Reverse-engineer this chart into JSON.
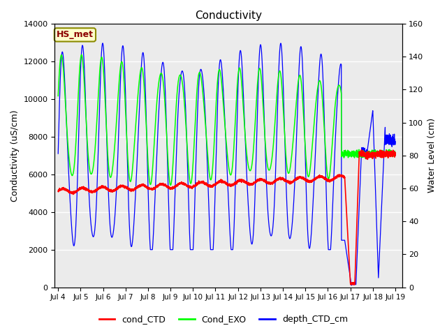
{
  "title": "Conductivity",
  "ylabel_left": "Conductivity (uS/cm)",
  "ylabel_right": "Water Level (cm)",
  "xlim_days": [
    3.85,
    19.3
  ],
  "ylim_left": [
    0,
    14000
  ],
  "ylim_right": [
    0,
    160
  ],
  "xtick_labels": [
    "Jul 4",
    "Jul 5",
    "Jul 6",
    "Jul 7",
    "Jul 8",
    "Jul 9",
    "Jul 10",
    "Jul 11",
    "Jul 12",
    "Jul 13",
    "Jul 14",
    "Jul 15",
    "Jul 16",
    "Jul 17",
    "Jul 18",
    "Jul 19"
  ],
  "xtick_positions": [
    4,
    5,
    6,
    7,
    8,
    9,
    10,
    11,
    12,
    13,
    14,
    15,
    16,
    17,
    18,
    19
  ],
  "plot_bg_color": "#e8e8e8",
  "inner_bg_color": "#f0f0f0",
  "legend_labels": [
    "cond_CTD",
    "Cond_EXO",
    "depth_CTD_cm"
  ],
  "legend_colors": [
    "red",
    "lime",
    "blue"
  ],
  "annotation_text": "HS_met",
  "annotation_color": "darkred",
  "annotation_bg": "#ffffcc",
  "annotation_border": "#8b8b00"
}
